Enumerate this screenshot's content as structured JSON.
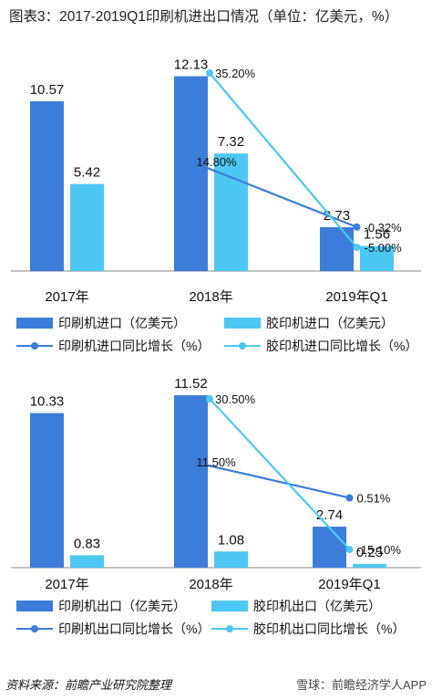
{
  "title": "图表3：2017-2019Q1印刷机进出口情况（单位：亿美元，%）",
  "colors": {
    "dark": "#3b7dd8",
    "light": "#4dc8f2",
    "axis": "#888888"
  },
  "chart_data": [
    {
      "type": "bar",
      "categories": [
        "2017年",
        "2018年",
        "2019年Q1"
      ],
      "series": [
        {
          "name": "印刷机进口（亿美元）",
          "kind": "bar",
          "color": "#3b7dd8",
          "values": [
            10.57,
            12.13,
            2.73
          ]
        },
        {
          "name": "胶印机进口（亿美元）",
          "kind": "bar",
          "color": "#4dc8f2",
          "values": [
            5.42,
            7.32,
            1.56
          ]
        },
        {
          "name": "印刷机进口同比增长（%）",
          "kind": "line",
          "color": "#3b7dd8",
          "values": [
            null,
            14.8,
            -0.32
          ]
        },
        {
          "name": "胶印机进口同比增长（%）",
          "kind": "line",
          "color": "#4dc8f2",
          "values": [
            null,
            35.2,
            -5.0
          ]
        }
      ],
      "bar_labels": [
        [
          "10.57",
          "12.13",
          "2.73"
        ],
        [
          "5.42",
          "7.32",
          "1.56"
        ]
      ],
      "line_labels": [
        [
          null,
          "14.80%",
          "-0.32%"
        ],
        [
          null,
          "35.20%",
          "-5.00%"
        ]
      ]
    },
    {
      "type": "bar",
      "categories": [
        "2017年",
        "2018年",
        "2019年Q1"
      ],
      "series": [
        {
          "name": "印刷机出口（亿美元）",
          "kind": "bar",
          "color": "#3b7dd8",
          "values": [
            10.33,
            11.52,
            2.74
          ]
        },
        {
          "name": "胶印机出口（亿美元）",
          "kind": "bar",
          "color": "#4dc8f2",
          "values": [
            0.83,
            1.08,
            0.25
          ]
        },
        {
          "name": "印刷机出口同比增长（%）",
          "kind": "line",
          "color": "#3b7dd8",
          "values": [
            null,
            11.5,
            0.51
          ]
        },
        {
          "name": "胶印机出口同比增长（%）",
          "kind": "line",
          "color": "#4dc8f2",
          "values": [
            null,
            30.5,
            -15.1
          ]
        }
      ],
      "bar_labels": [
        [
          "10.33",
          "11.52",
          "2.74"
        ],
        [
          "0.83",
          "1.08",
          "0.25"
        ]
      ],
      "line_labels": [
        [
          null,
          "11.50%",
          "0.51%"
        ],
        [
          null,
          "30.50%",
          "-15.10%"
        ]
      ]
    }
  ],
  "legend1": {
    "a": "印刷机进口（亿美元）",
    "b": "胶印机进口（亿美元）",
    "c": "印刷机进口同比增长（%）",
    "d": "胶印机进口同比增长（%）"
  },
  "legend2": {
    "a": "印刷机出口（亿美元）",
    "b": "胶印机出口（亿美元）",
    "c": "印刷机出口同比增长（%）",
    "d": "胶印机出口同比增长（%）"
  },
  "source": "资料来源：前瞻产业研究院整理",
  "footer_brand": "雪球：前瞻经济学人APP"
}
